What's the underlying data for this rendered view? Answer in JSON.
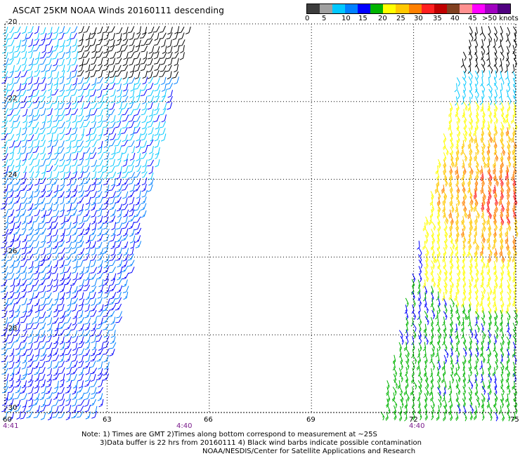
{
  "title": "ASCAT 25KM NOAA Winds 20160111 descending",
  "legend": {
    "labels": [
      "0",
      "5",
      "10",
      "15",
      "20",
      "25",
      "30",
      "35",
      "40",
      "45",
      ">50 knots"
    ],
    "colors": [
      "#3c3c3c",
      "#a0a0a0",
      "#00c8ff",
      "#0080ff",
      "#0000ff",
      "#00b400",
      "#ffff00",
      "#ffc800",
      "#ff8000",
      "#ff2020",
      "#c00000",
      "#804020",
      "#ff9090",
      "#ff00ff",
      "#a000c0",
      "#500080"
    ]
  },
  "axes": {
    "lat_labels": [
      "-20",
      "-22",
      "-24",
      "-26",
      "-28",
      "-30"
    ],
    "lon_labels": [
      "60",
      "63",
      "66",
      "69",
      "72",
      "75"
    ]
  },
  "times": [
    "4:41",
    "4:40",
    "4:40"
  ],
  "notes": [
    "Note: 1) Times are GMT 2)Times along bottom correspond to measurement at ~25S",
    "3)Data buffer is 22 hrs from 20160111 4) Black wind barbs indicate possible contamination",
    "NOAA/NESDIS/Center for Satellite Applications and Research"
  ],
  "map_data": {
    "lon_range": [
      60,
      75
    ],
    "lat_range": [
      -20,
      -30
    ],
    "swaths": [
      {
        "name": "west",
        "lon_top": [
          60.0,
          65.5
        ],
        "lon_bottom": [
          60.0,
          62.8
        ],
        "dominant_speed_kt": [
          7,
          15
        ]
      },
      {
        "name": "east",
        "lon_top": [
          73.6,
          75.0
        ],
        "lon_bottom": [
          71.0,
          75.0
        ],
        "dominant_speed_kt": [
          12,
          35
        ]
      }
    ]
  }
}
